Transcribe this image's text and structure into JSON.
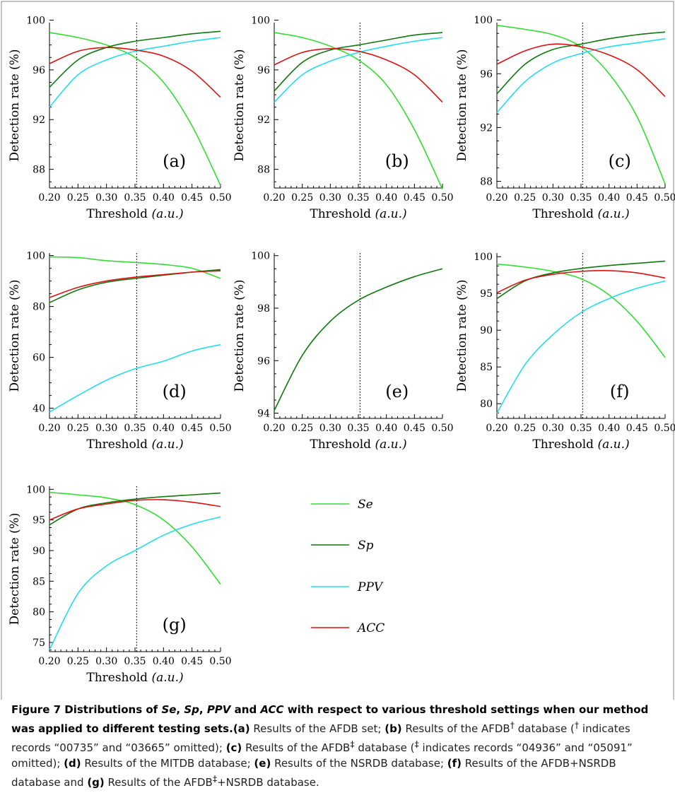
{
  "colors": {
    "Se": "#33dd33",
    "Sp": "#117711",
    "PPV": "#22ddee",
    "ACC": "#dd1111"
  },
  "legend": [
    {
      "key": "Se",
      "label": "Se"
    },
    {
      "key": "Sp",
      "label": "Sp"
    },
    {
      "key": "PPV",
      "label": "PPV"
    },
    {
      "key": "ACC",
      "label": "ACC"
    }
  ],
  "chart_data": [
    {
      "id": "a",
      "type": "line",
      "panel_label": "(a)",
      "xlabel": "Threshold",
      "xlabel_unit": "(a.u.)",
      "ylabel": "Detection rate (%)",
      "xlim": [
        0.2,
        0.5
      ],
      "ylim": [
        86.5,
        99.8
      ],
      "xticks": [
        0.2,
        0.25,
        0.3,
        0.35,
        0.4,
        0.45,
        0.5
      ],
      "yticks": [
        88,
        92,
        96,
        100
      ],
      "threshold_line": 0.353,
      "x": [
        0.2,
        0.25,
        0.3,
        0.35,
        0.4,
        0.45,
        0.5
      ],
      "series": [
        {
          "key": "Se",
          "values": [
            99.0,
            98.6,
            98.0,
            97.0,
            95.0,
            91.5,
            86.7
          ]
        },
        {
          "key": "Sp",
          "values": [
            94.6,
            96.8,
            97.8,
            98.3,
            98.6,
            98.9,
            99.1
          ]
        },
        {
          "key": "PPV",
          "values": [
            93.0,
            95.6,
            96.8,
            97.5,
            97.9,
            98.3,
            98.6
          ]
        },
        {
          "key": "ACC",
          "values": [
            96.5,
            97.5,
            97.8,
            97.6,
            97.1,
            95.9,
            93.8
          ]
        }
      ]
    },
    {
      "id": "b",
      "type": "line",
      "panel_label": "(b)",
      "xlabel": "Threshold",
      "xlabel_unit": "(a.u.)",
      "ylabel": "Detection rate (%)",
      "xlim": [
        0.2,
        0.5
      ],
      "ylim": [
        86.5,
        99.8
      ],
      "xticks": [
        0.2,
        0.25,
        0.3,
        0.35,
        0.4,
        0.45,
        0.5
      ],
      "yticks": [
        88,
        92,
        96,
        100
      ],
      "threshold_line": 0.353,
      "x": [
        0.2,
        0.25,
        0.3,
        0.35,
        0.4,
        0.45,
        0.5
      ],
      "series": [
        {
          "key": "Se",
          "values": [
            99.0,
            98.6,
            97.9,
            96.8,
            94.8,
            91.2,
            86.4
          ]
        },
        {
          "key": "Sp",
          "values": [
            94.3,
            96.6,
            97.6,
            98.0,
            98.4,
            98.8,
            99.0
          ]
        },
        {
          "key": "PPV",
          "values": [
            93.4,
            95.6,
            96.7,
            97.4,
            97.9,
            98.3,
            98.6
          ]
        },
        {
          "key": "ACC",
          "values": [
            96.4,
            97.4,
            97.7,
            97.5,
            96.8,
            95.6,
            93.4
          ]
        }
      ]
    },
    {
      "id": "c",
      "type": "line",
      "panel_label": "(c)",
      "xlabel": "Threshold",
      "xlabel_unit": "(a.u.)",
      "ylabel": "Detection rate (%)",
      "xlim": [
        0.2,
        0.5
      ],
      "ylim": [
        87.5,
        99.8
      ],
      "xticks": [
        0.2,
        0.25,
        0.3,
        0.35,
        0.4,
        0.45,
        0.5
      ],
      "yticks": [
        88,
        92,
        96,
        100
      ],
      "threshold_line": 0.353,
      "x": [
        0.2,
        0.25,
        0.3,
        0.35,
        0.4,
        0.45,
        0.5
      ],
      "series": [
        {
          "key": "Se",
          "values": [
            99.6,
            99.3,
            98.9,
            98.0,
            96.0,
            92.8,
            87.8
          ]
        },
        {
          "key": "Sp",
          "values": [
            94.5,
            96.7,
            97.8,
            98.2,
            98.6,
            98.9,
            99.1
          ]
        },
        {
          "key": "PPV",
          "values": [
            93.1,
            95.4,
            96.8,
            97.5,
            98.0,
            98.3,
            98.6
          ]
        },
        {
          "key": "ACC",
          "values": [
            96.7,
            97.7,
            98.2,
            98.0,
            97.4,
            96.3,
            94.3
          ]
        }
      ]
    },
    {
      "id": "d",
      "type": "line",
      "panel_label": "(d)",
      "xlabel": "Threshold",
      "xlabel_unit": "(a.u.)",
      "ylabel": "Detection rate (%)",
      "xlim": [
        0.2,
        0.5
      ],
      "ylim": [
        36,
        101
      ],
      "xticks": [
        0.2,
        0.25,
        0.3,
        0.35,
        0.4,
        0.45,
        0.5
      ],
      "yticks": [
        40,
        60,
        80,
        100
      ],
      "threshold_line": 0.353,
      "x": [
        0.2,
        0.25,
        0.3,
        0.35,
        0.4,
        0.45,
        0.5
      ],
      "series": [
        {
          "key": "Se",
          "values": [
            99.5,
            99.2,
            98.0,
            97.3,
            96.5,
            95.0,
            91.0
          ]
        },
        {
          "key": "Sp",
          "values": [
            81.5,
            86.5,
            89.5,
            91.0,
            92.3,
            93.5,
            94.5
          ]
        },
        {
          "key": "PPV",
          "values": [
            38.5,
            45.0,
            51.0,
            55.5,
            58.5,
            62.5,
            65.0
          ]
        },
        {
          "key": "ACC",
          "values": [
            83.5,
            87.5,
            90.0,
            91.5,
            92.5,
            93.5,
            94.0
          ]
        }
      ]
    },
    {
      "id": "e",
      "type": "line",
      "panel_label": "(e)",
      "xlabel": "Threshold",
      "xlabel_unit": "(a.u.)",
      "ylabel": "Detection rate (%)",
      "xlim": [
        0.2,
        0.5
      ],
      "ylim": [
        93.8,
        100.1
      ],
      "xticks": [
        0.2,
        0.25,
        0.3,
        0.35,
        0.4,
        0.45,
        0.5
      ],
      "yticks": [
        94,
        96,
        98,
        100
      ],
      "threshold_line": 0.353,
      "x": [
        0.2,
        0.25,
        0.3,
        0.35,
        0.4,
        0.45,
        0.5
      ],
      "series": [
        {
          "key": "Sp",
          "values": [
            94.1,
            96.2,
            97.5,
            98.3,
            98.8,
            99.2,
            99.5
          ]
        }
      ]
    },
    {
      "id": "f",
      "type": "line",
      "panel_label": "(f)",
      "xlabel": "Threshold",
      "xlabel_unit": "(a.u.)",
      "ylabel": "Detection rate (%)",
      "xlim": [
        0.2,
        0.5
      ],
      "ylim": [
        78,
        100.5
      ],
      "xticks": [
        0.2,
        0.25,
        0.3,
        0.35,
        0.4,
        0.45,
        0.5
      ],
      "yticks": [
        80,
        85,
        90,
        95,
        100
      ],
      "threshold_line": 0.353,
      "x": [
        0.2,
        0.25,
        0.3,
        0.35,
        0.4,
        0.45,
        0.5
      ],
      "series": [
        {
          "key": "Se",
          "values": [
            99.0,
            98.6,
            98.0,
            97.0,
            94.8,
            91.2,
            86.3
          ]
        },
        {
          "key": "Sp",
          "values": [
            94.3,
            96.7,
            97.8,
            98.4,
            98.8,
            99.1,
            99.4
          ]
        },
        {
          "key": "PPV",
          "values": [
            78.7,
            85.3,
            89.4,
            92.4,
            94.3,
            95.7,
            96.7
          ]
        },
        {
          "key": "ACC",
          "values": [
            95.1,
            96.8,
            97.6,
            98.0,
            98.1,
            97.8,
            97.1
          ]
        }
      ]
    },
    {
      "id": "g",
      "type": "line",
      "panel_label": "(g)",
      "xlabel": "Threshold",
      "xlabel_unit": "(a.u.)",
      "ylabel": "Detection rate (%)",
      "xlim": [
        0.2,
        0.5
      ],
      "ylim": [
        73.5,
        100.5
      ],
      "xticks": [
        0.2,
        0.25,
        0.3,
        0.35,
        0.4,
        0.45,
        0.5
      ],
      "yticks": [
        75,
        80,
        85,
        90,
        95,
        100
      ],
      "threshold_line": 0.353,
      "x": [
        0.2,
        0.25,
        0.3,
        0.35,
        0.4,
        0.45,
        0.5
      ],
      "series": [
        {
          "key": "Se",
          "values": [
            99.5,
            99.1,
            98.6,
            97.5,
            95.0,
            90.6,
            84.5
          ]
        },
        {
          "key": "Sp",
          "values": [
            94.2,
            96.8,
            97.8,
            98.4,
            98.8,
            99.1,
            99.4
          ]
        },
        {
          "key": "PPV",
          "values": [
            73.8,
            83.0,
            87.5,
            90.0,
            92.5,
            94.3,
            95.5
          ]
        },
        {
          "key": "ACC",
          "values": [
            95.0,
            96.8,
            97.6,
            98.2,
            98.3,
            97.9,
            97.2
          ]
        }
      ]
    }
  ],
  "caption": {
    "figure_label": "Figure 7",
    "title_part1": "Distributions of ",
    "title_se": "Se",
    "title_sep1": ", ",
    "title_sp": "Sp",
    "title_sep2": ", ",
    "title_ppv": "PPV",
    "title_and": " and ",
    "title_acc": "ACC",
    "title_part2": " with respect to various threshold settings when our method was applied to different testing sets.",
    "a_label": "(a)",
    "a_text": " Results of the AFDB set; ",
    "b_label": "(b)",
    "b_text1": " Results of the AFDB",
    "dagger": "†",
    "b_text2": " database (",
    "b_text3": " indicates records “00735” and “03665” omitted); ",
    "c_label": "(c)",
    "c_text1": " Results of the AFDB",
    "ddagger": "‡",
    "c_text2": " database (",
    "c_text3": " indicates records “04936” and “05091” omitted); ",
    "d_label": "(d)",
    "d_text": " Results of the MITDB database; ",
    "e_label": "(e)",
    "e_text": " Results of the NSRDB database; ",
    "f_label": "(f)",
    "f_text": " Results of the AFDB+NSRDB database and ",
    "g_label": "(g)",
    "g_text1": " Results of the AFDB",
    "g_text2": "+NSRDB database."
  }
}
